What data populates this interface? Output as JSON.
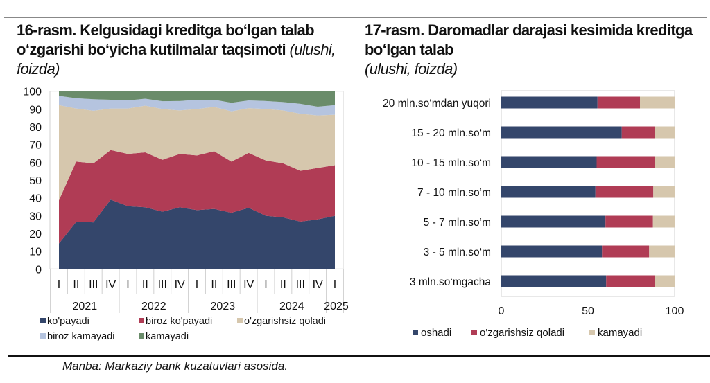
{
  "colors": {
    "blue": "#34466b",
    "red": "#b03c55",
    "beige": "#d6c7ad",
    "lightblue": "#b5c4df",
    "green": "#6a8c6a"
  },
  "chart_data": [
    {
      "type": "area",
      "stacked": true,
      "title_bold": "16-rasm. Kelgusidagi kreditga bo‘lgan talab o‘zgarishi bo‘yicha kutilmalar taqsimoti",
      "title_italic": "(ulushi, foizda)",
      "ylim": [
        0,
        100
      ],
      "yticks": [
        "0",
        "10",
        "20",
        "30",
        "40",
        "50",
        "60",
        "70",
        "80",
        "90",
        "100"
      ],
      "quarters": [
        "I",
        "II",
        "III",
        "IV",
        "I",
        "II",
        "III",
        "IV",
        "I",
        "II",
        "III",
        "IV",
        "I",
        "II",
        "III",
        "IV",
        "I"
      ],
      "years": [
        "2021",
        "2022",
        "2023",
        "2024",
        "2025"
      ],
      "legend_placement": "bottom",
      "series": [
        {
          "name": "ko'payadi",
          "color": "#34466b",
          "values": [
            14.3,
            26.4,
            26.2,
            39.0,
            35.3,
            34.7,
            32.2,
            34.7,
            33.1,
            33.8,
            31.6,
            34.4,
            29.9,
            29.0,
            26.6,
            27.9,
            29.9
          ]
        },
        {
          "name": "biroz ko'payadi",
          "color": "#b03c55",
          "values": [
            24.3,
            34.0,
            33.2,
            27.9,
            29.4,
            30.9,
            29.2,
            30.0,
            30.8,
            32.4,
            28.8,
            30.9,
            31.1,
            30.4,
            28.6,
            28.9,
            28.5
          ]
        },
        {
          "name": "o'zgarishsiz qoladi",
          "color": "#d6c7ad",
          "values": [
            53.6,
            29.9,
            29.6,
            23.4,
            25.6,
            26.3,
            28.6,
            24.5,
            26.1,
            25.0,
            28.3,
            25.2,
            29.0,
            29.8,
            32.1,
            29.6,
            28.4
          ]
        },
        {
          "name": "biroz kamayadi",
          "color": "#b5c4df",
          "values": [
            5.2,
            5.8,
            6.5,
            4.9,
            4.5,
            3.9,
            4.4,
            5.3,
            5.2,
            4.0,
            4.8,
            4.3,
            4.5,
            4.7,
            5.6,
            4.9,
            5.4
          ]
        },
        {
          "name": "kamayadi",
          "color": "#6a8c6a",
          "values": [
            2.6,
            3.9,
            4.5,
            4.8,
            5.2,
            4.2,
            5.6,
            5.5,
            4.8,
            4.8,
            6.5,
            5.2,
            5.5,
            6.1,
            7.1,
            8.7,
            7.8
          ]
        }
      ]
    },
    {
      "type": "bar",
      "orientation": "horizontal",
      "stacked": true,
      "title_bold": "17-rasm. Daromadlar darajasi kesimida kreditga bo‘lgan talab",
      "title_italic": "(ulushi, foizda)",
      "xlim": [
        0,
        100
      ],
      "xticks": [
        "0",
        "50",
        "100"
      ],
      "categories": [
        "20 mln.so‘mdan yuqori",
        "15 - 20 mln.so‘m",
        "10 - 15 mln.so‘m",
        "7 - 10 mln.so‘m",
        "5 - 7 mln.so‘m",
        "3 - 5 mln.so‘m",
        "3 mln.so‘mgacha"
      ],
      "legend_placement": "bottom",
      "series": [
        {
          "name": "oshadi",
          "color": "#34466b",
          "values": [
            55.5,
            69.5,
            55.0,
            54.3,
            60.1,
            58.1,
            60.5
          ]
        },
        {
          "name": "o'zgarishsiz qoladi",
          "color": "#b03c55",
          "values": [
            24.5,
            18.9,
            33.7,
            33.4,
            27.4,
            27.2,
            28.0
          ]
        },
        {
          "name": "kamayadi",
          "color": "#d6c7ad",
          "values": [
            20.0,
            11.6,
            11.3,
            12.3,
            12.5,
            14.7,
            11.5
          ]
        }
      ]
    }
  ],
  "source": "Manba: Markaziy bank kuzatuvlari asosida."
}
